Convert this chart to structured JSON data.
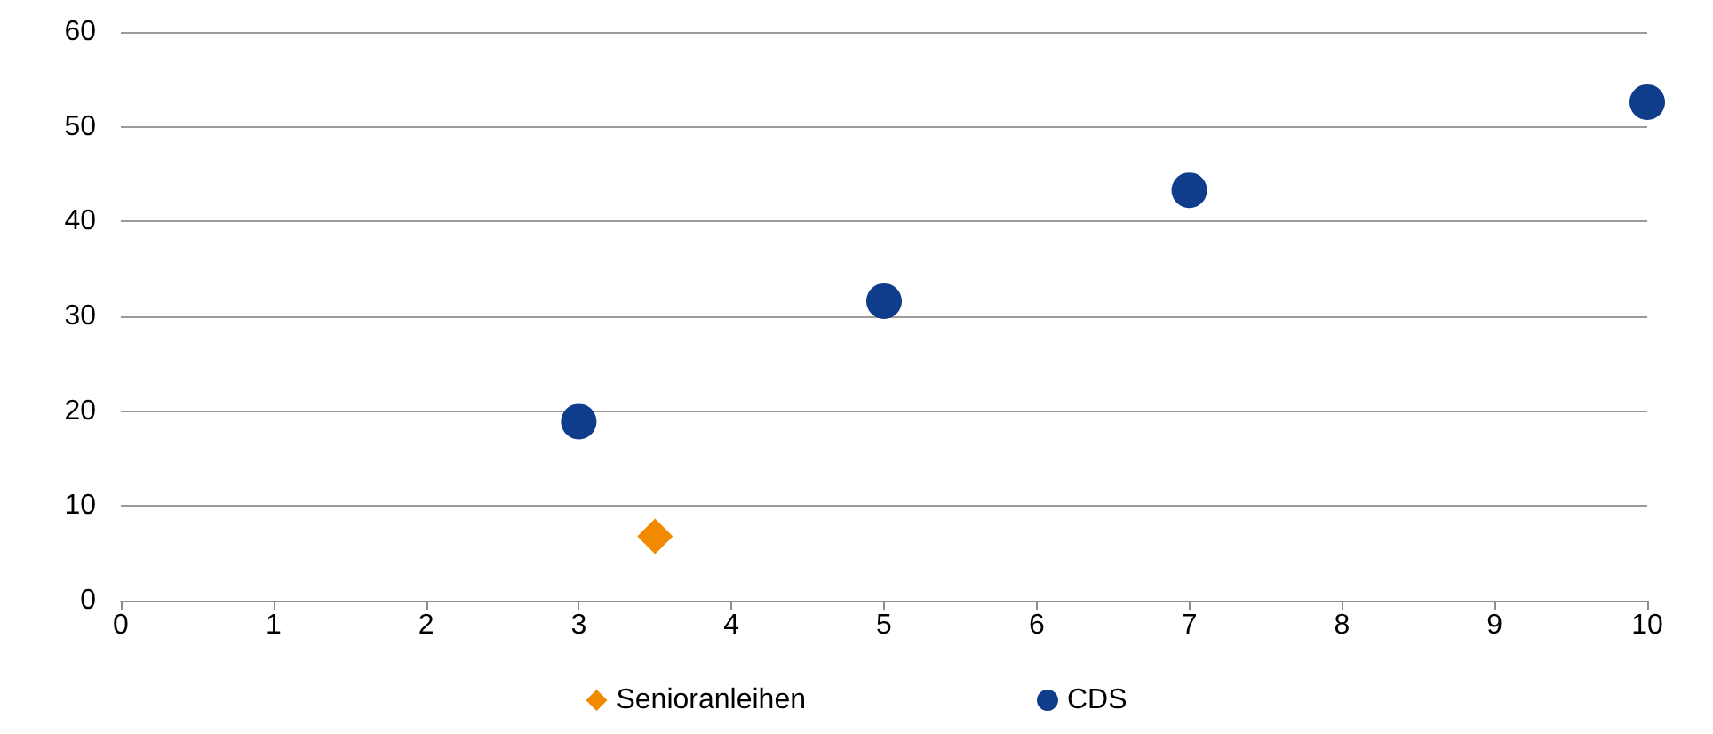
{
  "chart_data": {
    "type": "scatter",
    "series": [
      {
        "name": "Senioranleihen",
        "color": "#f28a00",
        "marker": "diamond",
        "x": [
          3.5
        ],
        "values": [
          6.8
        ]
      },
      {
        "name": "CDS",
        "color": "#0f3d8c",
        "marker": "circle",
        "x": [
          3,
          5,
          7,
          10
        ],
        "values": [
          18.9,
          31.6,
          43.3,
          52.6
        ]
      }
    ],
    "xlim": [
      0,
      10
    ],
    "xticks": [
      0,
      1,
      2,
      3,
      4,
      5,
      6,
      7,
      8,
      9,
      10
    ],
    "ylim": [
      0,
      60
    ],
    "yticks": [
      0,
      10,
      20,
      30,
      40,
      50,
      60
    ],
    "grid": "y",
    "legend": "bottom"
  }
}
